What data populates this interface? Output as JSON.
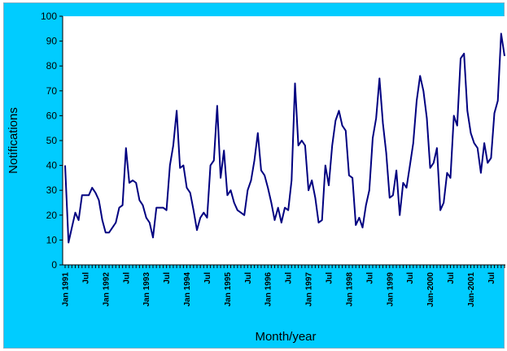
{
  "chart_data": {
    "type": "line",
    "title": "",
    "xlabel": "Month/year",
    "ylabel": "Notifications",
    "ylim": [
      0,
      100
    ],
    "yticks": [
      0,
      10,
      20,
      30,
      40,
      50,
      60,
      70,
      80,
      90,
      100
    ],
    "grid": false,
    "legend": "none",
    "x_start": "Jan 1991",
    "x_end": "Dec 2001",
    "xtick_labels": [
      "Jan 1991",
      "Jul",
      "Jan 1992",
      "Jul",
      "Jan 1993",
      "Jul",
      "Jan 1994",
      "Jul",
      "Jan 1995",
      "Jul",
      "Jan 1996",
      "Jul",
      "Jan 1997",
      "Jul",
      "Jan 1998",
      "Jul",
      "Jan 1999",
      "Jul",
      "Jan-2000",
      "Jul",
      "Jan-2001",
      "Jul"
    ],
    "series": [
      {
        "color": "#000080",
        "values": [
          40,
          9,
          15,
          21,
          18,
          28,
          28,
          28,
          31,
          29,
          26,
          18,
          13,
          13,
          15,
          17,
          23,
          24,
          47,
          33,
          34,
          33,
          26,
          24,
          19,
          17,
          11,
          23,
          23,
          23,
          22,
          40,
          48,
          62,
          39,
          40,
          31,
          29,
          22,
          14,
          19,
          21,
          19,
          40,
          42,
          64,
          35,
          46,
          28,
          30,
          25,
          22,
          21,
          20,
          30,
          34,
          42,
          53,
          38,
          36,
          31,
          25,
          18,
          23,
          17,
          23,
          22,
          34,
          73,
          48,
          50,
          48,
          30,
          34,
          27,
          17,
          18,
          40,
          32,
          48,
          58,
          62,
          56,
          54,
          36,
          35,
          16,
          19,
          15,
          24,
          30,
          51,
          59,
          75,
          57,
          45,
          27,
          28,
          38,
          20,
          33,
          31,
          40,
          49,
          66,
          76,
          70,
          59,
          39,
          41,
          47,
          22,
          25,
          37,
          35,
          60,
          56,
          83,
          85,
          62,
          53,
          49,
          47,
          37,
          49,
          41,
          43,
          61,
          66,
          93,
          84
        ]
      }
    ]
  }
}
